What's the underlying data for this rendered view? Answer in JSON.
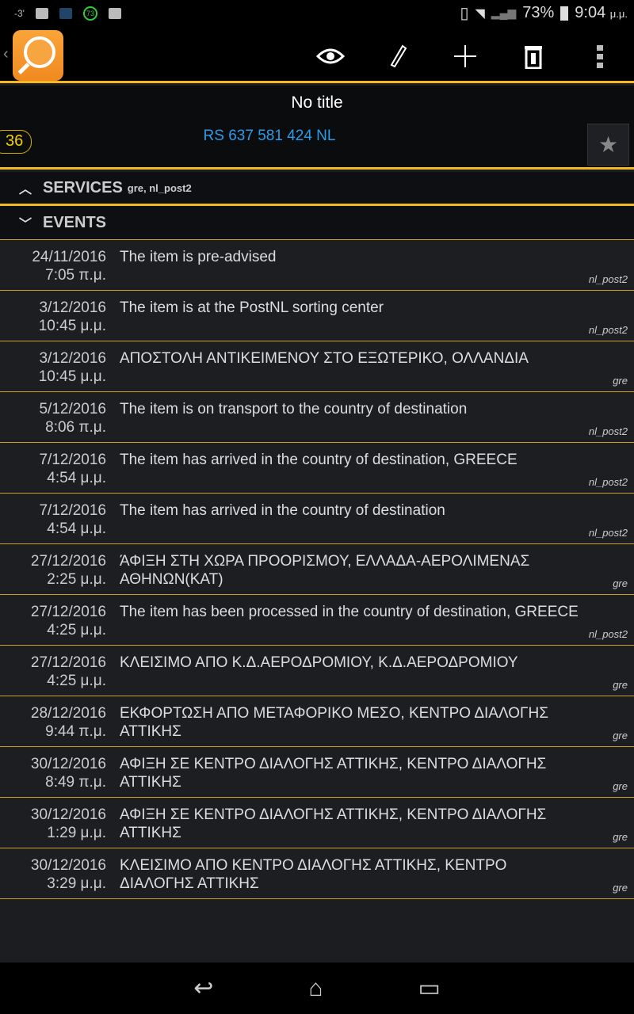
{
  "status": {
    "temp": "-3'",
    "notif_count": "73",
    "battery": "73%",
    "time": "9:04",
    "ampm": "μ.μ."
  },
  "toolbar": {
    "actions": [
      "eye-icon",
      "pencil-icon",
      "plus-icon",
      "trash-icon",
      "overflow-menu-icon"
    ]
  },
  "header": {
    "title": "No title",
    "tracking": "RS 637 581 424 NL",
    "badge": "36"
  },
  "services": {
    "label": "SERVICES",
    "value": "gre, nl_post2"
  },
  "events": {
    "label": "EVENTS",
    "items": [
      {
        "date": "24/11/2016",
        "time": "7:05 π.μ.",
        "desc": "The item is pre-advised",
        "svc": "nl_post2"
      },
      {
        "date": "3/12/2016",
        "time": "10:45 μ.μ.",
        "desc": "The item is at the PostNL sorting center",
        "svc": "nl_post2"
      },
      {
        "date": "3/12/2016",
        "time": "10:45 μ.μ.",
        "desc": "ΑΠΟΣΤΟΛΗ ΑΝΤΙΚΕΙΜΕΝΟΥ ΣΤΟ ΕΞΩΤΕΡΙΚΟ, ΟΛΛΑΝΔΙΑ",
        "svc": "gre"
      },
      {
        "date": "5/12/2016",
        "time": "8:06 π.μ.",
        "desc": "The item is on transport to the country of destination",
        "svc": "nl_post2"
      },
      {
        "date": "7/12/2016",
        "time": "4:54 μ.μ.",
        "desc": "The item has arrived in the country of destination, GREECE",
        "svc": "nl_post2"
      },
      {
        "date": "7/12/2016",
        "time": "4:54 μ.μ.",
        "desc": "The item has arrived in the country of destination",
        "svc": "nl_post2"
      },
      {
        "date": "27/12/2016",
        "time": "2:25 μ.μ.",
        "desc": "ΆΦΙΞΗ ΣΤΗ ΧΩΡΑ ΠΡΟΟΡΙΣΜΟΥ, ΕΛΛΑΔΑ-ΑΕΡΟΛΙΜΕΝΑΣ ΑΘΗΝΩΝ(ΚΑΤ)",
        "svc": "gre"
      },
      {
        "date": "27/12/2016",
        "time": "4:25 μ.μ.",
        "desc": "The item has been processed in the country of destination, GREECE",
        "svc": "nl_post2"
      },
      {
        "date": "27/12/2016",
        "time": "4:25 μ.μ.",
        "desc": "ΚΛΕΙΣΙΜΟ ΑΠΟ Κ.Δ.ΑΕΡΟΔΡΟΜΙΟΥ, Κ.Δ.ΑΕΡΟΔΡΟΜΙΟΥ",
        "svc": "gre"
      },
      {
        "date": "28/12/2016",
        "time": "9:44 π.μ.",
        "desc": "ΕΚΦΟΡΤΩΣΗ ΑΠΟ ΜΕΤΑΦΟΡΙΚΟ ΜΕΣΟ, ΚΕΝΤΡΟ ΔΙΑΛΟΓΗΣ ΑΤΤΙΚΗΣ",
        "svc": "gre"
      },
      {
        "date": "30/12/2016",
        "time": "8:49 π.μ.",
        "desc": "ΑΦΙΞΗ ΣΕ ΚΕΝΤΡΟ ΔΙΑΛΟΓΗΣ ΑΤΤΙΚΗΣ, ΚΕΝΤΡΟ ΔΙΑΛΟΓΗΣ ΑΤΤΙΚΗΣ",
        "svc": "gre"
      },
      {
        "date": "30/12/2016",
        "time": "1:29 μ.μ.",
        "desc": "ΑΦΙΞΗ ΣΕ ΚΕΝΤΡΟ ΔΙΑΛΟΓΗΣ ΑΤΤΙΚΗΣ, ΚΕΝΤΡΟ ΔΙΑΛΟΓΗΣ ΑΤΤΙΚΗΣ",
        "svc": "gre"
      },
      {
        "date": "30/12/2016",
        "time": "3:29 μ.μ.",
        "desc": "ΚΛΕΙΣΙΜΟ ΑΠΟ ΚΕΝΤΡΟ ΔΙΑΛΟΓΗΣ ΑΤΤΙΚΗΣ, ΚΕΝΤΡΟ ΔΙΑΛΟΓΗΣ ΑΤΤΙΚΗΣ",
        "svc": "gre"
      }
    ]
  },
  "colors": {
    "accent": "#f5b920",
    "link": "#2d9ae8",
    "badge": "#f2d000"
  }
}
